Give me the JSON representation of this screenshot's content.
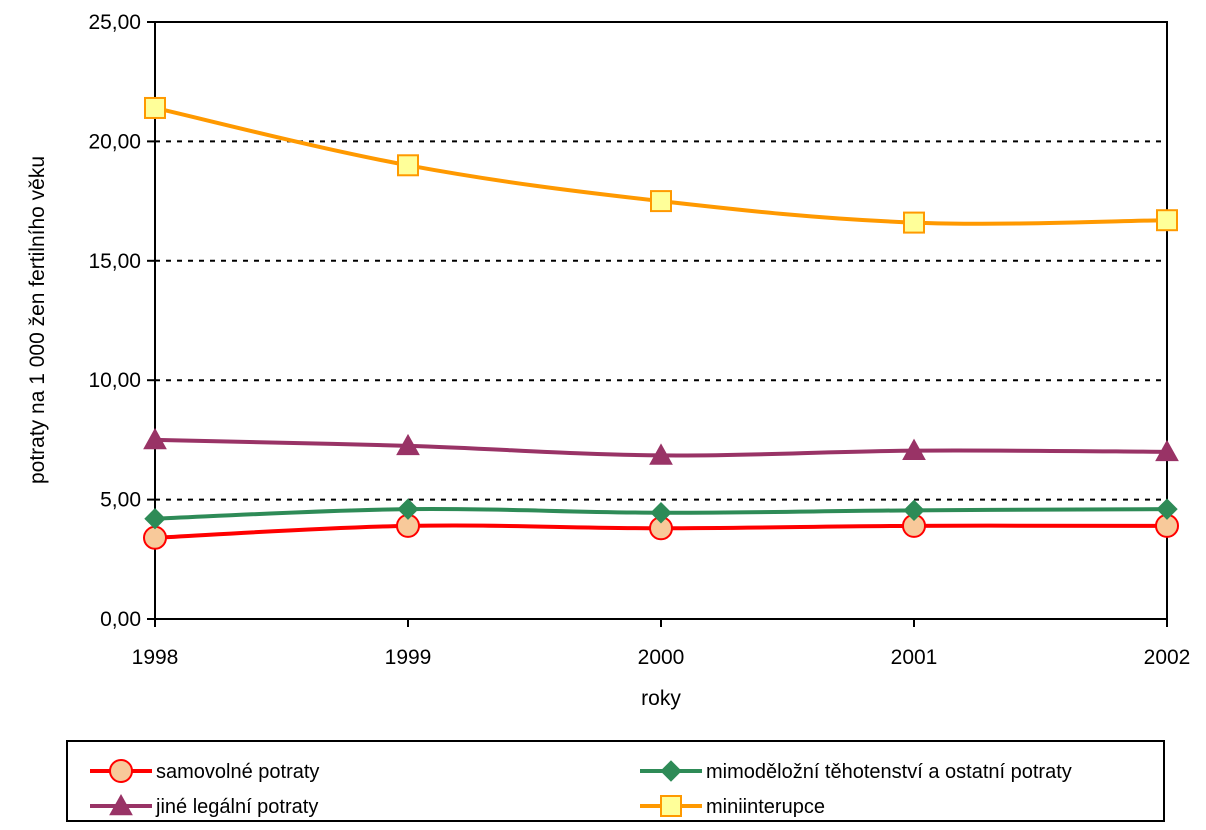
{
  "chart_data": {
    "type": "line",
    "title": "",
    "xlabel": "roky",
    "ylabel": "potraty na 1 000 žen fertilního věku",
    "categories": [
      "1998",
      "1999",
      "2000",
      "2001",
      "2002"
    ],
    "ylim": [
      0,
      25
    ],
    "yticks": [
      "0,00",
      "5,00",
      "10,00",
      "15,00",
      "20,00",
      "25,00"
    ],
    "grid": "horizontal dashed",
    "legend_position": "bottom",
    "series": [
      {
        "name": "samovolné potraty",
        "values": [
          3.4,
          3.9,
          3.8,
          3.9,
          3.9
        ],
        "color": "#ff0000",
        "marker": "circle",
        "marker_fill": "#f8c99a"
      },
      {
        "name": "mimoděložní těhotenství a ostatní potraty",
        "values": [
          4.2,
          4.6,
          4.45,
          4.55,
          4.6
        ],
        "color": "#2e8b57",
        "marker": "diamond",
        "marker_fill": "#2e8b57"
      },
      {
        "name": "jiné legální potraty",
        "values": [
          7.5,
          7.25,
          6.85,
          7.05,
          7.0
        ],
        "color": "#993366",
        "marker": "triangle",
        "marker_fill": "#993366"
      },
      {
        "name": "miniinterupce",
        "values": [
          21.4,
          19.0,
          17.5,
          16.6,
          16.7
        ],
        "color": "#ff9900",
        "marker": "square",
        "marker_fill": "#ffff99"
      }
    ]
  }
}
